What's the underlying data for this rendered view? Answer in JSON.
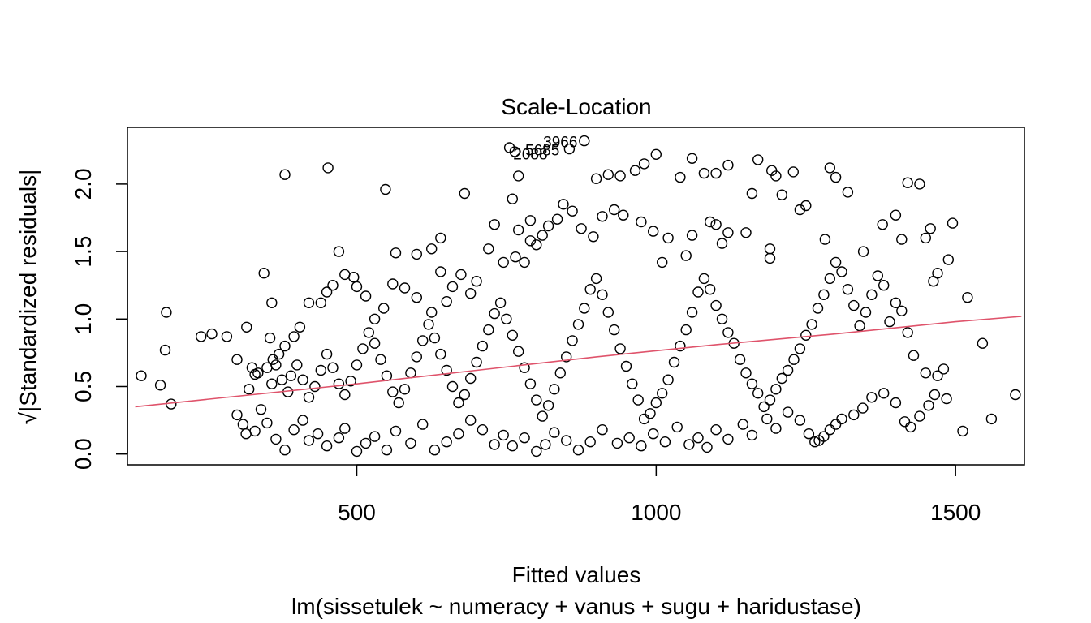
{
  "chart_data": {
    "type": "scatter",
    "title": "Scale-Location",
    "xlabel": "Fitted values",
    "sublabel": "lm(sissetulek ~ numeracy + vanus + sugu + haridustase)",
    "ylabel": "√|Standardized residuals|",
    "xlim": [
      117,
      1615
    ],
    "ylim": [
      -0.08,
      2.42
    ],
    "x_ticks": [
      500,
      1000,
      1500
    ],
    "y_ticks": [
      0.0,
      0.5,
      1.0,
      1.5,
      2.0
    ],
    "x_tick_labels": [
      "500",
      "1000",
      "1500"
    ],
    "y_tick_labels": [
      "0.0",
      "0.5",
      "1.0",
      "1.5",
      "2.0"
    ],
    "marker": "open-circle",
    "marker_color": "#000000",
    "smoother_color": "#DF536B",
    "smoother": {
      "x": [
        130,
        500,
        700,
        900,
        1100,
        1300,
        1500,
        1610
      ],
      "y": [
        0.35,
        0.52,
        0.62,
        0.72,
        0.81,
        0.89,
        0.98,
        1.02
      ]
    },
    "annotations": [
      {
        "label": "3966",
        "x": 840,
        "y": 2.31
      },
      {
        "label": "5685",
        "x": 810,
        "y": 2.25
      },
      {
        "label": "2088",
        "x": 790,
        "y": 2.22
      }
    ],
    "highlighted_points": [
      {
        "x": 880,
        "y": 2.32
      },
      {
        "x": 855,
        "y": 2.26
      },
      {
        "x": 755,
        "y": 2.27
      },
      {
        "x": 764,
        "y": 2.24
      }
    ],
    "points": [
      [
        140,
        0.58
      ],
      [
        172,
        0.51
      ],
      [
        182,
        1.05
      ],
      [
        180,
        0.77
      ],
      [
        190,
        0.37
      ],
      [
        240,
        0.87
      ],
      [
        258,
        0.89
      ],
      [
        283,
        0.87
      ],
      [
        300,
        0.7
      ],
      [
        316,
        0.94
      ],
      [
        325,
        0.64
      ],
      [
        330,
        0.59
      ],
      [
        340,
        0.33
      ],
      [
        345,
        1.34
      ],
      [
        355,
        0.86
      ],
      [
        358,
        1.12
      ],
      [
        380,
        2.07
      ],
      [
        452,
        2.12
      ],
      [
        548,
        1.96
      ],
      [
        565,
        1.49
      ],
      [
        600,
        1.48
      ],
      [
        625,
        1.52
      ],
      [
        640,
        1.6
      ],
      [
        680,
        1.93
      ],
      [
        730,
        1.7
      ],
      [
        760,
        1.89
      ],
      [
        770,
        2.06
      ],
      [
        780,
        1.42
      ],
      [
        790,
        1.58
      ],
      [
        1520,
        1.16
      ],
      [
        1545,
        0.82
      ],
      [
        1560,
        0.26
      ],
      [
        1600,
        0.44
      ],
      [
        1512,
        0.17
      ],
      [
        1495,
        1.71
      ],
      [
        1488,
        1.44
      ],
      [
        1470,
        1.34
      ],
      [
        1463,
        1.28
      ],
      [
        1450,
        1.6
      ],
      [
        1458,
        1.67
      ],
      [
        1440,
        2.0
      ],
      [
        1420,
        2.01
      ],
      [
        1410,
        1.59
      ],
      [
        1400,
        1.77
      ],
      [
        1378,
        1.7
      ],
      [
        1346,
        1.5
      ],
      [
        1300,
        2.05
      ],
      [
        1290,
        2.12
      ],
      [
        1282,
        1.59
      ],
      [
        1240,
        1.81
      ],
      [
        1229,
        2.09
      ],
      [
        1210,
        1.92
      ],
      [
        1200,
        2.06
      ],
      [
        1193,
        2.1
      ],
      [
        1170,
        2.18
      ],
      [
        1120,
        2.14
      ],
      [
        1100,
        2.08
      ],
      [
        1080,
        2.08
      ],
      [
        1060,
        2.19
      ],
      [
        1040,
        2.05
      ],
      [
        1000,
        2.22
      ],
      [
        980,
        2.15
      ],
      [
        965,
        2.1
      ],
      [
        940,
        2.06
      ],
      [
        920,
        2.07
      ],
      [
        900,
        2.04
      ],
      [
        1320,
        1.94
      ],
      [
        1190,
        1.52
      ],
      [
        1150,
        1.64
      ],
      [
        1160,
        1.93
      ],
      [
        1250,
        1.84
      ],
      [
        1190,
        1.45
      ],
      [
        1120,
        1.64
      ],
      [
        1110,
        1.56
      ],
      [
        1100,
        1.7
      ],
      [
        1090,
        1.72
      ],
      [
        1060,
        1.62
      ],
      [
        1050,
        1.47
      ],
      [
        1020,
        1.6
      ],
      [
        1010,
        1.42
      ],
      [
        995,
        1.65
      ],
      [
        975,
        1.72
      ],
      [
        945,
        1.77
      ],
      [
        930,
        1.81
      ],
      [
        910,
        1.76
      ],
      [
        895,
        1.61
      ],
      [
        875,
        1.67
      ],
      [
        860,
        1.8
      ],
      [
        845,
        1.85
      ],
      [
        835,
        1.74
      ],
      [
        820,
        1.69
      ],
      [
        810,
        1.62
      ],
      [
        800,
        1.55
      ],
      [
        790,
        1.73
      ],
      [
        770,
        1.66
      ],
      [
        765,
        1.46
      ],
      [
        745,
        1.42
      ],
      [
        720,
        1.52
      ],
      [
        700,
        1.28
      ],
      [
        690,
        1.19
      ],
      [
        674,
        1.33
      ],
      [
        660,
        1.24
      ],
      [
        650,
        1.13
      ],
      [
        640,
        1.35
      ],
      [
        625,
        1.05
      ],
      [
        600,
        1.16
      ],
      [
        580,
        1.23
      ],
      [
        560,
        1.26
      ],
      [
        545,
        1.08
      ],
      [
        530,
        1.0
      ],
      [
        515,
        1.17
      ],
      [
        500,
        1.24
      ],
      [
        495,
        1.31
      ],
      [
        480,
        1.33
      ],
      [
        470,
        1.5
      ],
      [
        460,
        1.25
      ],
      [
        450,
        1.2
      ],
      [
        440,
        1.12
      ],
      [
        420,
        1.12
      ],
      [
        405,
        0.94
      ],
      [
        395,
        0.87
      ],
      [
        380,
        0.8
      ],
      [
        370,
        0.74
      ],
      [
        360,
        0.7
      ],
      [
        350,
        0.64
      ],
      [
        335,
        0.6
      ],
      [
        320,
        0.48
      ],
      [
        310,
        0.22
      ],
      [
        300,
        0.29
      ],
      [
        315,
        0.15
      ],
      [
        330,
        0.17
      ],
      [
        350,
        0.23
      ],
      [
        365,
        0.11
      ],
      [
        380,
        0.03
      ],
      [
        395,
        0.18
      ],
      [
        410,
        0.25
      ],
      [
        420,
        0.1
      ],
      [
        435,
        0.15
      ],
      [
        450,
        0.06
      ],
      [
        470,
        0.12
      ],
      [
        480,
        0.19
      ],
      [
        500,
        0.02
      ],
      [
        515,
        0.08
      ],
      [
        530,
        0.13
      ],
      [
        550,
        0.03
      ],
      [
        565,
        0.17
      ],
      [
        590,
        0.08
      ],
      [
        610,
        0.22
      ],
      [
        630,
        0.03
      ],
      [
        650,
        0.09
      ],
      [
        670,
        0.15
      ],
      [
        690,
        0.25
      ],
      [
        710,
        0.18
      ],
      [
        730,
        0.07
      ],
      [
        745,
        0.14
      ],
      [
        760,
        0.06
      ],
      [
        780,
        0.12
      ],
      [
        800,
        0.02
      ],
      [
        815,
        0.07
      ],
      [
        830,
        0.16
      ],
      [
        850,
        0.1
      ],
      [
        870,
        0.03
      ],
      [
        890,
        0.09
      ],
      [
        910,
        0.18
      ],
      [
        935,
        0.08
      ],
      [
        955,
        0.12
      ],
      [
        975,
        0.06
      ],
      [
        995,
        0.15
      ],
      [
        1015,
        0.09
      ],
      [
        1035,
        0.2
      ],
      [
        1055,
        0.07
      ],
      [
        1070,
        0.12
      ],
      [
        1085,
        0.05
      ],
      [
        1100,
        0.18
      ],
      [
        1120,
        0.11
      ],
      [
        1145,
        0.22
      ],
      [
        1160,
        0.14
      ],
      [
        1185,
        0.26
      ],
      [
        1200,
        0.19
      ],
      [
        1220,
        0.31
      ],
      [
        1240,
        0.25
      ],
      [
        1255,
        0.15
      ],
      [
        1265,
        0.09
      ],
      [
        1272,
        0.1
      ],
      [
        1280,
        0.13
      ],
      [
        1290,
        0.18
      ],
      [
        1300,
        0.22
      ],
      [
        1310,
        0.26
      ],
      [
        1330,
        0.29
      ],
      [
        1345,
        0.34
      ],
      [
        1360,
        0.42
      ],
      [
        1380,
        0.45
      ],
      [
        1400,
        0.38
      ],
      [
        1415,
        0.24
      ],
      [
        1425,
        0.2
      ],
      [
        1440,
        0.28
      ],
      [
        1455,
        0.36
      ],
      [
        1465,
        0.44
      ],
      [
        1470,
        0.58
      ],
      [
        1480,
        0.63
      ],
      [
        1485,
        0.41
      ],
      [
        1450,
        0.6
      ],
      [
        1430,
        0.73
      ],
      [
        1420,
        0.9
      ],
      [
        1410,
        1.06
      ],
      [
        1400,
        1.12
      ],
      [
        1390,
        0.98
      ],
      [
        1380,
        1.25
      ],
      [
        1370,
        1.32
      ],
      [
        1360,
        1.18
      ],
      [
        1350,
        1.05
      ],
      [
        1340,
        0.95
      ],
      [
        1330,
        1.1
      ],
      [
        1320,
        1.22
      ],
      [
        1310,
        1.35
      ],
      [
        1300,
        1.42
      ],
      [
        1290,
        1.3
      ],
      [
        1280,
        1.18
      ],
      [
        1270,
        1.08
      ],
      [
        1260,
        0.96
      ],
      [
        1250,
        0.88
      ],
      [
        1240,
        0.78
      ],
      [
        1230,
        0.7
      ],
      [
        1220,
        0.62
      ],
      [
        1210,
        0.56
      ],
      [
        1200,
        0.48
      ],
      [
        1190,
        0.4
      ],
      [
        1180,
        0.35
      ],
      [
        1170,
        0.45
      ],
      [
        1160,
        0.52
      ],
      [
        1150,
        0.6
      ],
      [
        1140,
        0.7
      ],
      [
        1130,
        0.82
      ],
      [
        1120,
        0.9
      ],
      [
        1110,
        1.0
      ],
      [
        1100,
        1.1
      ],
      [
        1090,
        1.22
      ],
      [
        1080,
        1.3
      ],
      [
        1070,
        1.2
      ],
      [
        1060,
        1.05
      ],
      [
        1050,
        0.92
      ],
      [
        1040,
        0.8
      ],
      [
        1030,
        0.68
      ],
      [
        1020,
        0.55
      ],
      [
        1010,
        0.45
      ],
      [
        1000,
        0.38
      ],
      [
        990,
        0.3
      ],
      [
        980,
        0.26
      ],
      [
        970,
        0.4
      ],
      [
        960,
        0.52
      ],
      [
        950,
        0.65
      ],
      [
        940,
        0.78
      ],
      [
        930,
        0.92
      ],
      [
        920,
        1.05
      ],
      [
        910,
        1.18
      ],
      [
        900,
        1.3
      ],
      [
        890,
        1.22
      ],
      [
        880,
        1.08
      ],
      [
        870,
        0.96
      ],
      [
        860,
        0.84
      ],
      [
        850,
        0.72
      ],
      [
        840,
        0.6
      ],
      [
        830,
        0.48
      ],
      [
        820,
        0.36
      ],
      [
        810,
        0.28
      ],
      [
        800,
        0.4
      ],
      [
        790,
        0.52
      ],
      [
        780,
        0.64
      ],
      [
        770,
        0.76
      ],
      [
        760,
        0.88
      ],
      [
        750,
        1.0
      ],
      [
        740,
        1.12
      ],
      [
        730,
        1.04
      ],
      [
        720,
        0.92
      ],
      [
        710,
        0.8
      ],
      [
        700,
        0.68
      ],
      [
        690,
        0.56
      ],
      [
        680,
        0.44
      ],
      [
        670,
        0.38
      ],
      [
        660,
        0.5
      ],
      [
        650,
        0.62
      ],
      [
        640,
        0.74
      ],
      [
        630,
        0.86
      ],
      [
        620,
        0.96
      ],
      [
        610,
        0.84
      ],
      [
        600,
        0.72
      ],
      [
        590,
        0.6
      ],
      [
        580,
        0.48
      ],
      [
        570,
        0.38
      ],
      [
        560,
        0.46
      ],
      [
        550,
        0.58
      ],
      [
        540,
        0.7
      ],
      [
        530,
        0.82
      ],
      [
        520,
        0.9
      ],
      [
        510,
        0.78
      ],
      [
        500,
        0.66
      ],
      [
        490,
        0.54
      ],
      [
        480,
        0.44
      ],
      [
        470,
        0.52
      ],
      [
        460,
        0.64
      ],
      [
        450,
        0.74
      ],
      [
        440,
        0.62
      ],
      [
        430,
        0.5
      ],
      [
        420,
        0.42
      ],
      [
        410,
        0.55
      ],
      [
        400,
        0.66
      ],
      [
        390,
        0.58
      ],
      [
        385,
        0.46
      ],
      [
        375,
        0.55
      ],
      [
        365,
        0.66
      ],
      [
        358,
        0.52
      ]
    ]
  }
}
